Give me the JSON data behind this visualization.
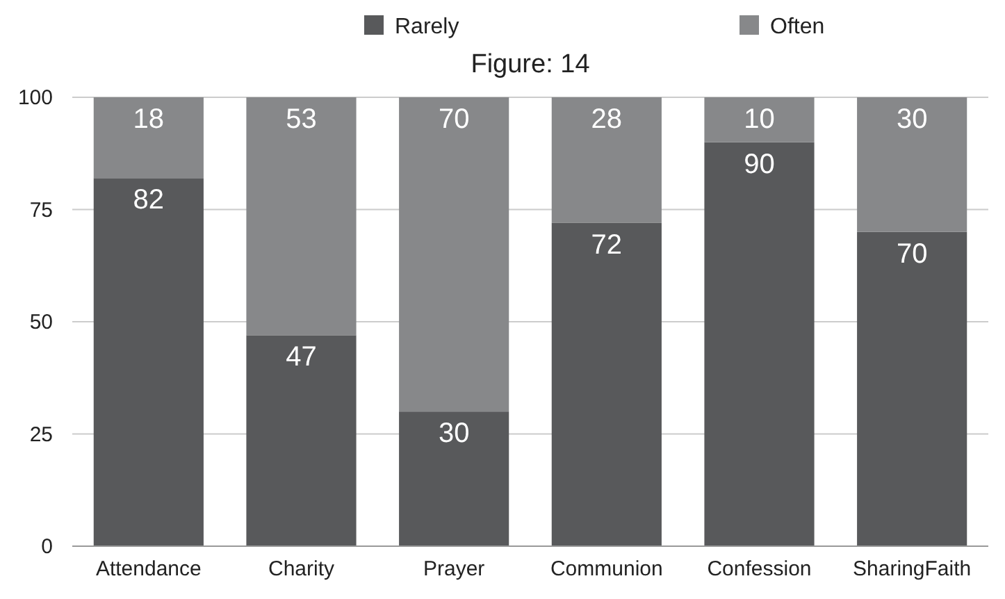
{
  "chart_data": {
    "type": "bar",
    "title": "Figure: 14",
    "stacked": true,
    "categories": [
      "Attendance",
      "Charity",
      "Prayer",
      "Communion",
      "Confession",
      "SharingFaith"
    ],
    "series": [
      {
        "name": "Rarely",
        "color": "#58595b",
        "values": [
          82,
          47,
          30,
          72,
          90,
          70
        ]
      },
      {
        "name": "Often",
        "color": "#87888a",
        "values": [
          18,
          53,
          70,
          28,
          10,
          30
        ]
      }
    ],
    "ylim": [
      0,
      100
    ],
    "yticks": [
      0,
      25,
      50,
      75,
      100
    ],
    "grid": "y",
    "legend": "top",
    "data_labels": true
  }
}
